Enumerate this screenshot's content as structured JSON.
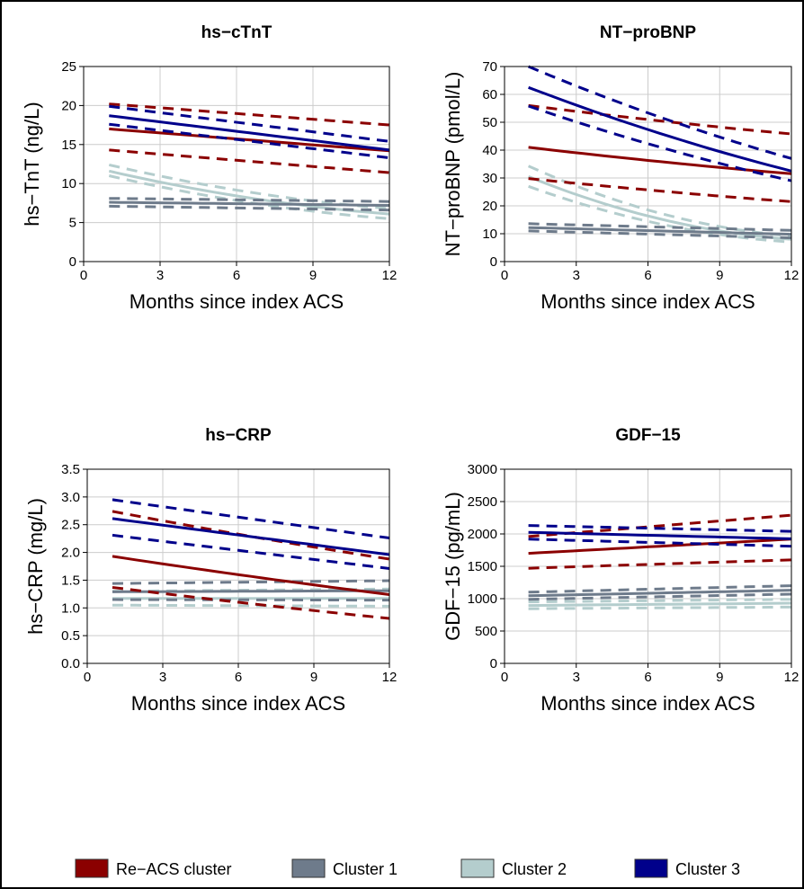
{
  "legend": [
    {
      "key": "reacs",
      "label": "Re−ACS cluster",
      "color": "#8B0000"
    },
    {
      "key": "c1",
      "label": "Cluster 1",
      "color": "#6E7B8B"
    },
    {
      "key": "c2",
      "label": "Cluster 2",
      "color": "#B4CDCD"
    },
    {
      "key": "c3",
      "label": "Cluster 3",
      "color": "#00008B"
    }
  ],
  "chart_data": [
    {
      "type": "line",
      "title": "hs−cTnT",
      "xlabel": "Months since index ACS",
      "ylabel": "hs−TnT (ng/L)",
      "xlim": [
        0,
        12
      ],
      "ylim": [
        0,
        25
      ],
      "xticks": [
        0,
        3,
        6,
        9,
        12
      ],
      "yticks": [
        0,
        5,
        10,
        15,
        20,
        25
      ],
      "grid": true,
      "x": [
        1,
        12
      ],
      "series": [
        {
          "key": "reacs",
          "curve": 0,
          "fit": [
            17.0,
            14.2
          ],
          "lower": [
            14.3,
            11.4
          ],
          "upper": [
            20.2,
            17.5
          ]
        },
        {
          "key": "c1",
          "curve": 0,
          "fit": [
            7.6,
            7.2
          ],
          "lower": [
            7.1,
            6.6
          ],
          "upper": [
            8.1,
            7.7
          ]
        },
        {
          "key": "c2",
          "curve": 0.25,
          "fit": [
            11.6,
            6.1
          ],
          "lower": [
            11.0,
            5.5
          ],
          "upper": [
            12.4,
            6.8
          ]
        },
        {
          "key": "c3",
          "curve": 0,
          "fit": [
            18.7,
            14.3
          ],
          "lower": [
            17.6,
            13.3
          ],
          "upper": [
            19.9,
            15.4
          ]
        }
      ]
    },
    {
      "type": "line",
      "title": "NT−proBNP",
      "xlabel": "Months since index ACS",
      "ylabel": "NT−proBNP (pmol/L)",
      "xlim": [
        0,
        12
      ],
      "ylim": [
        0,
        70
      ],
      "xticks": [
        0,
        3,
        6,
        9,
        12
      ],
      "yticks": [
        0,
        10,
        20,
        30,
        40,
        50,
        60,
        70
      ],
      "grid": true,
      "x": [
        1,
        12
      ],
      "series": [
        {
          "key": "reacs",
          "curve": 0.08,
          "fit": [
            41.0,
            31.5
          ],
          "lower": [
            29.8,
            21.5
          ],
          "upper": [
            56.0,
            45.8
          ]
        },
        {
          "key": "c1",
          "curve": 0,
          "fit": [
            12.2,
            9.8
          ],
          "lower": [
            11.0,
            8.5
          ],
          "upper": [
            13.6,
            11.2
          ]
        },
        {
          "key": "c2",
          "curve": 0.35,
          "fit": [
            30.5,
            8.0
          ],
          "lower": [
            27.0,
            7.0
          ],
          "upper": [
            34.3,
            9.2
          ]
        },
        {
          "key": "c3",
          "curve": 0.1,
          "fit": [
            62.5,
            32.5
          ],
          "lower": [
            55.8,
            29.0
          ],
          "upper": [
            70.0,
            37.0
          ]
        }
      ]
    },
    {
      "type": "line",
      "title": "hs−CRP",
      "xlabel": "Months since index ACS",
      "ylabel": "hs−CRP (mg/L)",
      "xlim": [
        0,
        12
      ],
      "ylim": [
        0.0,
        3.5
      ],
      "xticks": [
        0,
        3,
        6,
        9,
        12
      ],
      "yticks": [
        0.0,
        0.5,
        1.0,
        1.5,
        2.0,
        2.5,
        3.0,
        3.5
      ],
      "yticklabels": [
        "0.0",
        "0.5",
        "1.0",
        "1.5",
        "2.0",
        "2.5",
        "3.0",
        "3.5"
      ],
      "grid": true,
      "x": [
        1,
        12
      ],
      "series": [
        {
          "key": "reacs",
          "curve": 0.05,
          "fit": [
            1.93,
            1.24
          ],
          "lower": [
            1.37,
            0.81
          ],
          "upper": [
            2.74,
            1.88
          ]
        },
        {
          "key": "c1",
          "curve": 0,
          "fit": [
            1.29,
            1.31
          ],
          "lower": [
            1.15,
            1.14
          ],
          "upper": [
            1.44,
            1.49
          ]
        },
        {
          "key": "c2",
          "curve": 0,
          "fit": [
            1.17,
            1.17
          ],
          "lower": [
            1.05,
            1.03
          ],
          "upper": [
            1.3,
            1.34
          ]
        },
        {
          "key": "c3",
          "curve": 0,
          "fit": [
            2.61,
            1.96
          ],
          "lower": [
            2.31,
            1.71
          ],
          "upper": [
            2.95,
            2.26
          ]
        }
      ]
    },
    {
      "type": "line",
      "title": "GDF−15",
      "xlabel": "Months since index ACS",
      "ylabel": "GDF−15 (pg/mL)",
      "xlim": [
        0,
        12
      ],
      "ylim": [
        0,
        3000
      ],
      "xticks": [
        0,
        3,
        6,
        9,
        12
      ],
      "yticks": [
        0,
        500,
        1000,
        1500,
        2000,
        2500,
        3000
      ],
      "grid": true,
      "x": [
        1,
        12
      ],
      "series": [
        {
          "key": "reacs",
          "curve": 0,
          "fit": [
            1700,
            1920
          ],
          "lower": [
            1470,
            1600
          ],
          "upper": [
            1960,
            2290
          ]
        },
        {
          "key": "c1",
          "curve": 0,
          "fit": [
            1045,
            1130
          ],
          "lower": [
            990,
            1070
          ],
          "upper": [
            1100,
            1200
          ]
        },
        {
          "key": "c2",
          "curve": 0,
          "fit": [
            895,
            930
          ],
          "lower": [
            845,
            870
          ],
          "upper": [
            950,
            990
          ]
        },
        {
          "key": "c3",
          "curve": 0,
          "fit": [
            2025,
            1925
          ],
          "lower": [
            1920,
            1810
          ],
          "upper": [
            2130,
            2040
          ]
        }
      ]
    }
  ]
}
